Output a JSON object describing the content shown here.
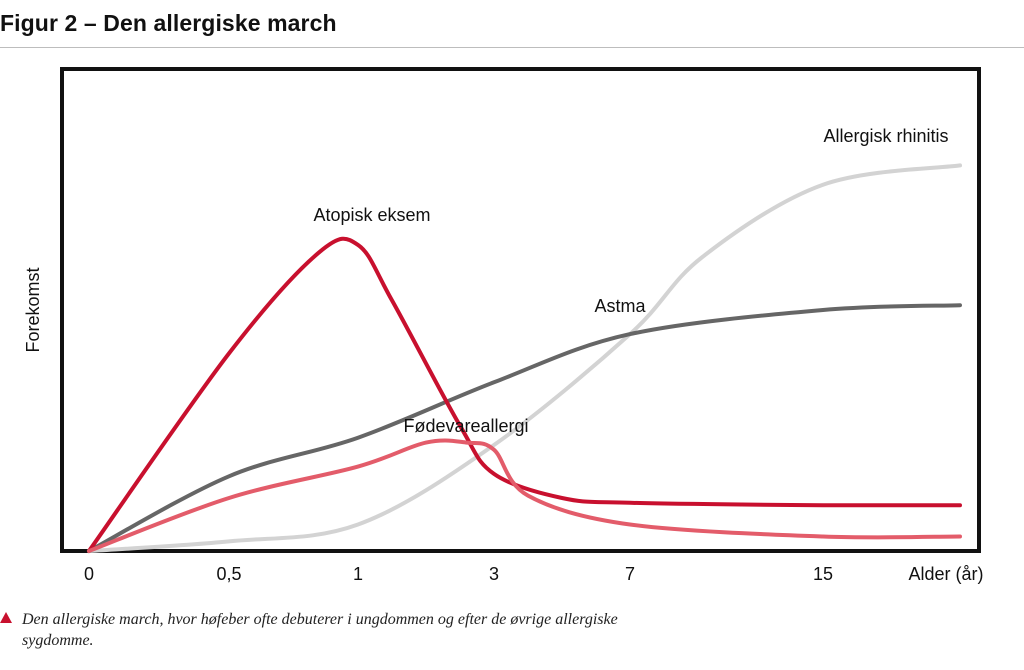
{
  "figure": {
    "title": "Figur 2 – Den allergiske march",
    "caption": "Den allergiske march, hvor høfeber ofte debuterer i ungdommen og efter de øvrige allergiske sygdomme."
  },
  "chart_data": {
    "type": "line",
    "title": "",
    "xlabel": "Alder (år)",
    "ylabel": "Forekomst",
    "x_ticks": [
      "0",
      "0,5",
      "1",
      "3",
      "7",
      "15"
    ],
    "x_scale": "categorical-nonlinear",
    "y_ticks": [],
    "ylim": [
      0,
      100
    ],
    "grid": false,
    "legend": "labels placed directly on curves",
    "series": [
      {
        "name": "Atopisk eksem",
        "color": "#c8102e",
        "points": [
          [
            0,
            0
          ],
          [
            0.5,
            41
          ],
          [
            0.85,
            62
          ],
          [
            1,
            63.5
          ],
          [
            1.5,
            52
          ],
          [
            2.5,
            26
          ],
          [
            3,
            16
          ],
          [
            5,
            11
          ],
          [
            7,
            10
          ],
          [
            15,
            9.5
          ],
          [
            20,
            9.5
          ]
        ]
      },
      {
        "name": "Fødevareallergi",
        "color": "#e35c6a",
        "points": [
          [
            0,
            0
          ],
          [
            0.5,
            11
          ],
          [
            1,
            17.5
          ],
          [
            2,
            22.5
          ],
          [
            2.6,
            22.5
          ],
          [
            3,
            21
          ],
          [
            4,
            11.5
          ],
          [
            7,
            5.5
          ],
          [
            15,
            3
          ],
          [
            20,
            3
          ]
        ]
      },
      {
        "name": "Astma",
        "color": "#666666",
        "points": [
          [
            0,
            0
          ],
          [
            0.5,
            15.5
          ],
          [
            1,
            23.5
          ],
          [
            3,
            35
          ],
          [
            7,
            45
          ],
          [
            15,
            50
          ],
          [
            20,
            51
          ]
        ]
      },
      {
        "name": "Allergisk rhinitis",
        "color": "#d3d3d3",
        "points": [
          [
            0,
            0
          ],
          [
            0.5,
            2
          ],
          [
            1,
            5.5
          ],
          [
            3,
            22
          ],
          [
            7,
            45
          ],
          [
            10,
            61
          ],
          [
            15,
            76
          ],
          [
            20,
            80
          ]
        ]
      }
    ]
  }
}
